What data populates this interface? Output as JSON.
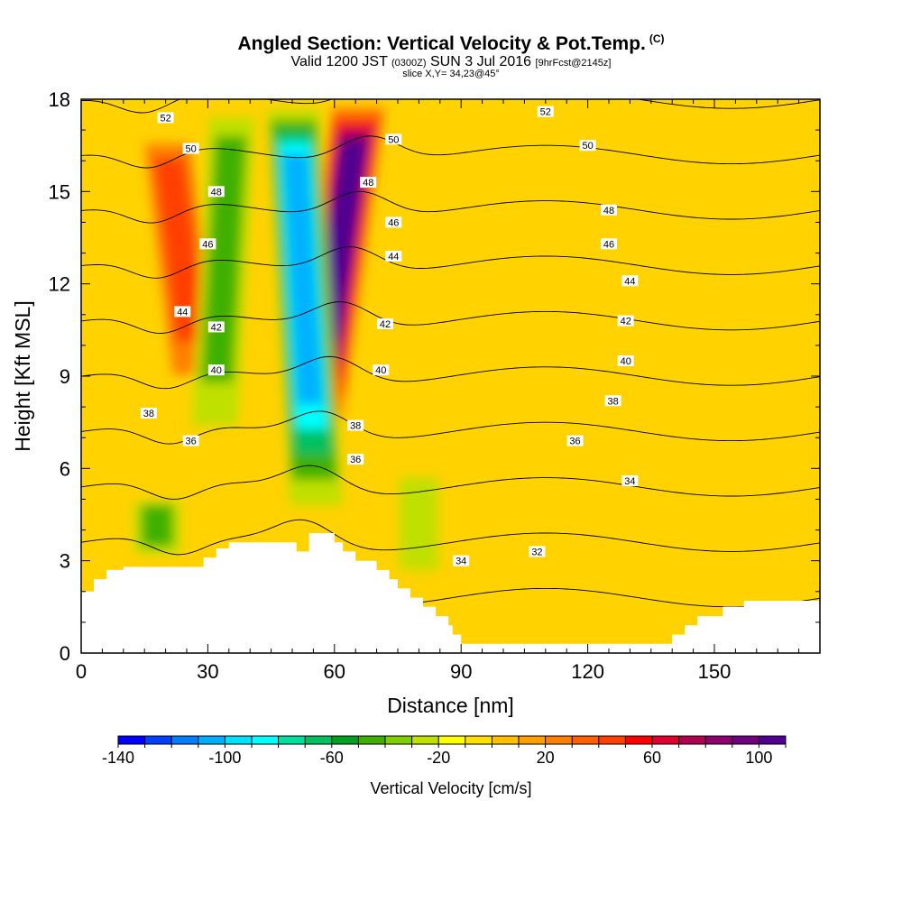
{
  "header": {
    "title": "Angled Section: Vertical Velocity & Pot.Temp.",
    "title_tag": "(C)",
    "valid_line": "Valid 1200 JST",
    "valid_utc": "(0300Z)",
    "valid_date": "SUN 3 Jul 2016",
    "forecast": "[9hrFcst@2145z]",
    "slice": "slice X,Y= 34,23@45°"
  },
  "chart_data": {
    "type": "heatmap",
    "title": "Angled Section: Vertical Velocity & Pot.Temp.",
    "xlabel": "Distance [nm]",
    "ylabel": "Height [Kft MSL]",
    "xlim": [
      0,
      175
    ],
    "ylim": [
      0,
      18
    ],
    "x_ticks": [
      0,
      30,
      60,
      90,
      120,
      150
    ],
    "y_ticks": [
      0,
      3,
      6,
      9,
      12,
      15,
      18
    ],
    "colorbar": {
      "label": "Vertical Velocity [cm/s]",
      "range": [
        -140,
        110
      ],
      "ticks": [
        -140,
        -100,
        -60,
        -20,
        20,
        60,
        100
      ],
      "colors": [
        "#0000ff",
        "#0040ff",
        "#0080ff",
        "#00b0ff",
        "#00e0ff",
        "#00ffff",
        "#00e0a0",
        "#00c060",
        "#00a020",
        "#40b000",
        "#80d000",
        "#c0e000",
        "#ffff00",
        "#ffe000",
        "#ffc000",
        "#ffa000",
        "#ff8000",
        "#ff6000",
        "#ff4000",
        "#ff0000",
        "#e00030",
        "#b00050",
        "#900070",
        "#700080",
        "#500090"
      ]
    },
    "velocity_features": [
      {
        "name": "updraft",
        "x_bottom": 55,
        "x_top": 66,
        "y_bottom": 7,
        "y_top": 18,
        "peak": 105
      },
      {
        "name": "updraft",
        "x_bottom": 28,
        "x_top": 20,
        "y_bottom": 8,
        "y_top": 17,
        "peak": 50
      },
      {
        "name": "downdraft",
        "x_bottom": 56,
        "x_top": 50,
        "y_bottom": 4,
        "y_top": 18,
        "peak": -110
      },
      {
        "name": "downdraft",
        "x_bottom": 31,
        "x_top": 36,
        "y_bottom": 6,
        "y_top": 18,
        "peak": -40
      },
      {
        "name": "downdraft",
        "x_bottom": 80,
        "x_top": 80,
        "y_bottom": 2,
        "y_top": 6,
        "peak": -30
      },
      {
        "name": "downdraft",
        "x_bottom": 18,
        "x_top": 18,
        "y_bottom": 3,
        "y_top": 5,
        "peak": -40
      }
    ],
    "theta_contours": [
      {
        "value": 32,
        "labels": [
          [
            108,
            3.3
          ]
        ]
      },
      {
        "value": 34,
        "labels": [
          [
            90,
            3.0
          ],
          [
            130,
            5.6
          ]
        ]
      },
      {
        "value": 36,
        "labels": [
          [
            26,
            6.9
          ],
          [
            65,
            6.3
          ],
          [
            117,
            6.9
          ]
        ]
      },
      {
        "value": 38,
        "labels": [
          [
            16,
            7.8
          ],
          [
            65,
            7.4
          ],
          [
            126,
            8.2
          ]
        ]
      },
      {
        "value": 40,
        "labels": [
          [
            32,
            9.2
          ],
          [
            71,
            9.2
          ],
          [
            129,
            9.5
          ]
        ]
      },
      {
        "value": 42,
        "labels": [
          [
            32,
            10.6
          ],
          [
            72,
            10.7
          ],
          [
            129,
            10.8
          ]
        ]
      },
      {
        "value": 44,
        "labels": [
          [
            24,
            11.1
          ],
          [
            74,
            12.9
          ],
          [
            130,
            12.1
          ]
        ]
      },
      {
        "value": 46,
        "labels": [
          [
            30,
            13.3
          ],
          [
            74,
            14.0
          ],
          [
            125,
            13.3
          ]
        ]
      },
      {
        "value": 48,
        "labels": [
          [
            32,
            15.0
          ],
          [
            68,
            15.3
          ],
          [
            125,
            14.4
          ]
        ]
      },
      {
        "value": 50,
        "labels": [
          [
            26,
            16.4
          ],
          [
            74,
            16.7
          ],
          [
            120,
            16.5
          ]
        ]
      },
      {
        "value": 52,
        "labels": [
          [
            20,
            17.4
          ],
          [
            110,
            17.6
          ]
        ]
      }
    ],
    "terrain": [
      [
        0,
        2.0
      ],
      [
        3,
        2.0
      ],
      [
        3,
        2.4
      ],
      [
        6,
        2.4
      ],
      [
        6,
        2.7
      ],
      [
        10,
        2.7
      ],
      [
        10,
        2.8
      ],
      [
        29,
        2.8
      ],
      [
        29,
        3.1
      ],
      [
        32,
        3.1
      ],
      [
        32,
        3.4
      ],
      [
        35,
        3.4
      ],
      [
        35,
        3.6
      ],
      [
        51,
        3.6
      ],
      [
        51,
        3.3
      ],
      [
        54,
        3.3
      ],
      [
        54,
        3.9
      ],
      [
        60,
        3.9
      ],
      [
        60,
        3.6
      ],
      [
        62,
        3.6
      ],
      [
        62,
        3.3
      ],
      [
        65,
        3.3
      ],
      [
        65,
        3.0
      ],
      [
        70,
        3.0
      ],
      [
        70,
        2.7
      ],
      [
        73,
        2.7
      ],
      [
        73,
        2.4
      ],
      [
        75,
        2.4
      ],
      [
        75,
        2.1
      ],
      [
        78,
        2.1
      ],
      [
        78,
        1.8
      ],
      [
        81,
        1.8
      ],
      [
        81,
        1.5
      ],
      [
        84,
        1.5
      ],
      [
        84,
        1.2
      ],
      [
        87,
        1.2
      ],
      [
        87,
        0.9
      ],
      [
        88,
        0.9
      ],
      [
        88,
        0.6
      ],
      [
        90,
        0.6
      ],
      [
        90,
        0.3
      ],
      [
        140,
        0.3
      ],
      [
        140,
        0.6
      ],
      [
        143,
        0.6
      ],
      [
        143,
        0.9
      ],
      [
        146,
        0.9
      ],
      [
        146,
        1.2
      ],
      [
        152,
        1.2
      ],
      [
        152,
        1.5
      ],
      [
        157,
        1.5
      ],
      [
        157,
        1.7
      ],
      [
        175,
        1.7
      ]
    ]
  }
}
